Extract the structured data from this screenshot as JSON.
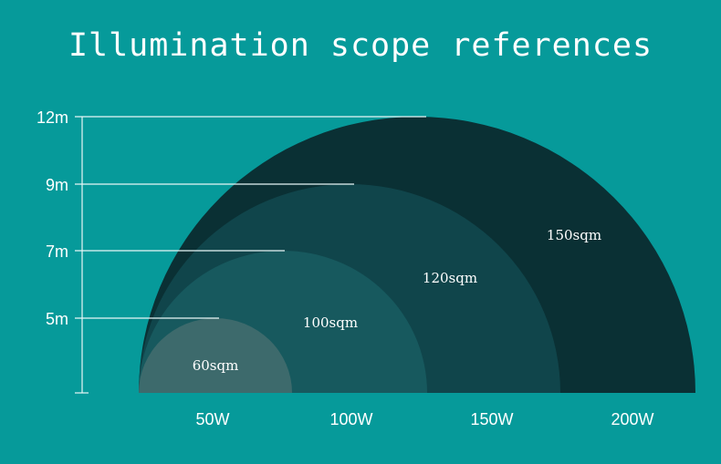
{
  "title": "Illumination scope references",
  "colors": {
    "background": "#069a9a",
    "arc_150sqm": "#0a3034",
    "arc_120sqm": "#10454b",
    "arc_100sqm": "#17595e",
    "arc_60sqm": "#3d6a6c",
    "lines": "#e8f6f6"
  },
  "y_axis": {
    "ticks": [
      {
        "label": "12m",
        "value": 12
      },
      {
        "label": "9m",
        "value": 9
      },
      {
        "label": "7m",
        "value": 7
      },
      {
        "label": "5m",
        "value": 5
      }
    ]
  },
  "x_axis": {
    "labels": [
      "50W",
      "100W",
      "150W",
      "200W"
    ]
  },
  "areas": [
    {
      "watt": "200W",
      "height_m": 12,
      "label": "150sqm"
    },
    {
      "watt": "150W",
      "height_m": 9,
      "label": "120sqm"
    },
    {
      "watt": "100W",
      "height_m": 7,
      "label": "100sqm"
    },
    {
      "watt": "50W",
      "height_m": 5,
      "label": "60sqm"
    }
  ]
}
